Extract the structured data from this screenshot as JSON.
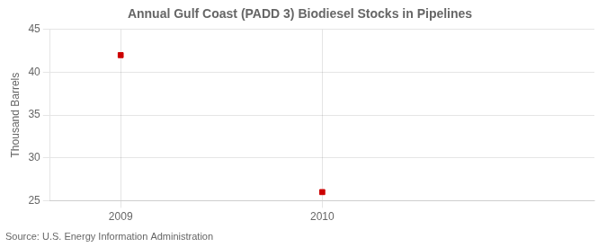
{
  "chart_data": {
    "type": "scatter",
    "title": "Annual Gulf Coast (PADD 3) Biodiesel Stocks in Pipelines",
    "ylabel": "Thousand Barrels",
    "annotations": [
      "Source: U.S. Energy Information Administration"
    ],
    "x": [
      2009,
      2010
    ],
    "values": [
      42,
      26
    ],
    "color": "#cc0000",
    "marker": "square",
    "xlim": [
      2008.65,
      2011.35
    ],
    "ylim": [
      25,
      45
    ],
    "xticks": [
      2009,
      2010
    ],
    "yticks": [
      25,
      30,
      35,
      40,
      45
    ],
    "grid": true
  }
}
